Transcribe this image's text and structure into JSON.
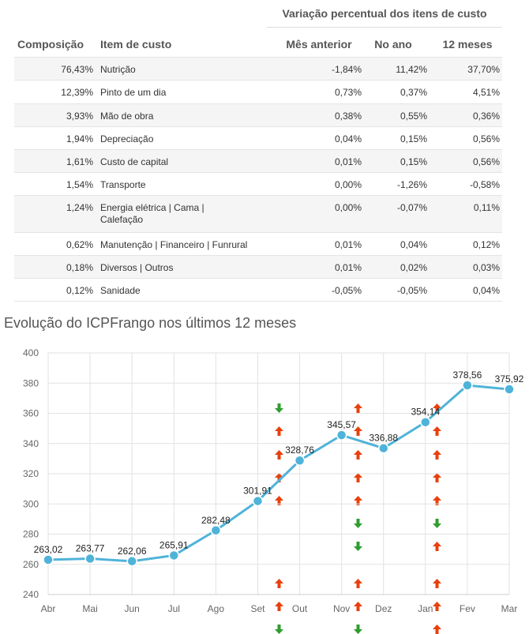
{
  "table": {
    "group_header": "Variação percentual dos itens de custo",
    "headers": {
      "composicao": "Composição",
      "item": "Item de custo",
      "mes": "Mês anterior",
      "ano": "No ano",
      "meses12": "12 meses"
    },
    "rows": [
      {
        "comp": "76,43%",
        "item": "Nutrição",
        "item2": "",
        "mes": "-1,84%",
        "mes_dir": "down",
        "ano": "11,42%",
        "ano_dir": "up",
        "m12": "37,70%",
        "m12_dir": "up"
      },
      {
        "comp": "12,39%",
        "item": "Pinto de um dia",
        "item2": "",
        "mes": "0,73%",
        "mes_dir": "up",
        "ano": "0,37%",
        "ano_dir": "up",
        "m12": "4,51%",
        "m12_dir": "up"
      },
      {
        "comp": "3,93%",
        "item": "Mão de obra",
        "item2": "",
        "mes": "0,38%",
        "mes_dir": "up",
        "ano": "0,55%",
        "ano_dir": "up",
        "m12": "0,36%",
        "m12_dir": "up"
      },
      {
        "comp": "1,94%",
        "item": "Depreciação",
        "item2": "",
        "mes": "0,04%",
        "mes_dir": "up",
        "ano": "0,15%",
        "ano_dir": "up",
        "m12": "0,56%",
        "m12_dir": "up"
      },
      {
        "comp": "1,61%",
        "item": "Custo de capital",
        "item2": "",
        "mes": "0,01%",
        "mes_dir": "up",
        "ano": "0,15%",
        "ano_dir": "up",
        "m12": "0,56%",
        "m12_dir": "up"
      },
      {
        "comp": "1,54%",
        "item": "Transporte",
        "item2": "",
        "mes": "0,00%",
        "mes_dir": "none",
        "ano": "-1,26%",
        "ano_dir": "down",
        "m12": "-0,58%",
        "m12_dir": "down"
      },
      {
        "comp": "1,24%",
        "item": "Energia elétrica | Cama |",
        "item2": "Calefação",
        "mes": "0,00%",
        "mes_dir": "none",
        "ano": "-0,07%",
        "ano_dir": "down",
        "m12": "0,11%",
        "m12_dir": "up"
      },
      {
        "comp": "0,62%",
        "item": "Manutenção | Financeiro | Funrural",
        "item2": "",
        "mes": "0,01%",
        "mes_dir": "up",
        "ano": "0,04%",
        "ano_dir": "up",
        "m12": "0,12%",
        "m12_dir": "up"
      },
      {
        "comp": "0,18%",
        "item": "Diversos | Outros",
        "item2": "",
        "mes": "0,01%",
        "mes_dir": "up",
        "ano": "0,02%",
        "ano_dir": "up",
        "m12": "0,03%",
        "m12_dir": "up"
      },
      {
        "comp": "0,12%",
        "item": "Sanidade",
        "item2": "",
        "mes": "-0,05%",
        "mes_dir": "down",
        "ano": "-0,05%",
        "ano_dir": "down",
        "m12": "0,04%",
        "m12_dir": "up"
      }
    ]
  },
  "colors": {
    "up": "#e8400c",
    "down": "#2e9e2e",
    "line": "#4fb3d9",
    "grid": "#e2e2e2"
  },
  "chart_data": {
    "type": "line",
    "title": "Evolução do ICPFrango nos últimos 12 meses",
    "categories": [
      "Abr",
      "Mai",
      "Jun",
      "Jul",
      "Ago",
      "Set",
      "Out",
      "Nov",
      "Dez",
      "Jan",
      "Fev",
      "Mar"
    ],
    "values": [
      263.02,
      263.77,
      262.06,
      265.91,
      282.48,
      301.91,
      328.76,
      345.57,
      336.88,
      354.14,
      378.56,
      375.92
    ],
    "data_labels": [
      "263,02",
      "263,77",
      "262,06",
      "265,91",
      "282,48",
      "301,91",
      "328,76",
      "345,57",
      "336,88",
      "354,14",
      "378,56",
      "375,92"
    ],
    "yticks": [
      "240",
      "260",
      "280",
      "300",
      "320",
      "340",
      "360",
      "380",
      "400"
    ],
    "ylim": [
      240,
      400
    ],
    "grid": true
  }
}
